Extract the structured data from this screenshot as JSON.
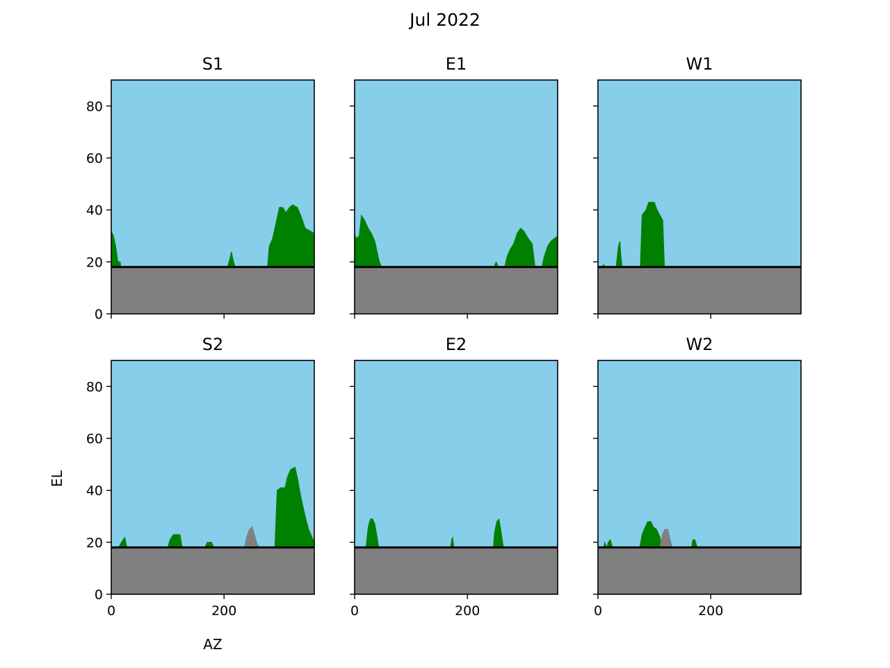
{
  "figure": {
    "title": "Jul 2022"
  },
  "chart_data": {
    "type": "area",
    "xlabel": "AZ",
    "ylabel": "EL",
    "xlim": [
      0,
      360
    ],
    "ylim": [
      0,
      90
    ],
    "xticks": [
      0,
      200
    ],
    "yticks": [
      0,
      20,
      40,
      60,
      80
    ],
    "colors": {
      "sky": "#87CEEB",
      "ground": "#808080",
      "obstruction": "#008000",
      "other": "#808080",
      "horizon": "#000000"
    },
    "panels": [
      {
        "title": "S1",
        "horizon_el": 18,
        "green": [
          [
            [
              0,
              32
            ],
            [
              4,
              30
            ],
            [
              8,
              26
            ],
            [
              12,
              20
            ],
            [
              16,
              20
            ],
            [
              17,
              18
            ]
          ],
          [
            [
              206,
              18
            ],
            [
              210,
              21
            ],
            [
              213,
              24
            ],
            [
              217,
              20
            ],
            [
              220,
              18
            ]
          ],
          [
            [
              277,
              18
            ],
            [
              280,
              26
            ],
            [
              286,
              29
            ],
            [
              290,
              33
            ],
            [
              294,
              37
            ],
            [
              298,
              41
            ],
            [
              304,
              41
            ],
            [
              310,
              39
            ],
            [
              316,
              41
            ],
            [
              322,
              42
            ],
            [
              330,
              41
            ],
            [
              336,
              38
            ],
            [
              344,
              33
            ],
            [
              352,
              32
            ],
            [
              360,
              31
            ]
          ]
        ],
        "grey": []
      },
      {
        "title": "E1",
        "horizon_el": 18,
        "green": [
          [
            [
              0,
              31
            ],
            [
              3,
              29
            ],
            [
              8,
              30
            ],
            [
              12,
              38
            ],
            [
              18,
              36
            ],
            [
              24,
              33
            ],
            [
              30,
              31
            ],
            [
              36,
              28
            ],
            [
              40,
              24
            ],
            [
              44,
              20
            ],
            [
              48,
              18
            ]
          ],
          [
            [
              247,
              18
            ],
            [
              251,
              20
            ],
            [
              255,
              18
            ]
          ],
          [
            [
              266,
              18
            ],
            [
              270,
              22
            ],
            [
              276,
              25
            ],
            [
              282,
              27
            ],
            [
              288,
              31
            ],
            [
              294,
              33
            ],
            [
              300,
              32
            ],
            [
              308,
              29
            ],
            [
              315,
              27
            ],
            [
              320,
              18
            ]
          ],
          [
            [
              332,
              18
            ],
            [
              336,
              22
            ],
            [
              342,
              26
            ],
            [
              348,
              28
            ],
            [
              354,
              29
            ],
            [
              360,
              30
            ]
          ]
        ],
        "grey": []
      },
      {
        "title": "W1",
        "horizon_el": 18,
        "green": [
          [
            [
              7,
              18
            ],
            [
              10,
              19
            ],
            [
              13,
              18
            ]
          ],
          [
            [
              32,
              18
            ],
            [
              34,
              22
            ],
            [
              36,
              26
            ],
            [
              39,
              28
            ],
            [
              41,
              22
            ],
            [
              43,
              18
            ]
          ],
          [
            [
              75,
              18
            ],
            [
              78,
              38
            ],
            [
              85,
              40
            ],
            [
              90,
              43
            ],
            [
              100,
              43
            ],
            [
              105,
              40
            ],
            [
              110,
              38
            ],
            [
              115,
              36
            ],
            [
              118,
              18
            ]
          ]
        ],
        "grey": []
      },
      {
        "title": "S2",
        "horizon_el": 18,
        "green": [
          [
            [
              13,
              18
            ],
            [
              18,
              20
            ],
            [
              24,
              22
            ],
            [
              28,
              18
            ]
          ],
          [
            [
              100,
              18
            ],
            [
              104,
              21
            ],
            [
              110,
              23
            ],
            [
              122,
              23
            ],
            [
              126,
              18
            ]
          ],
          [
            [
              166,
              18
            ],
            [
              170,
              20
            ],
            [
              178,
              20
            ],
            [
              182,
              18
            ]
          ],
          [
            [
              290,
              18
            ],
            [
              294,
              40
            ],
            [
              300,
              41
            ],
            [
              308,
              41
            ],
            [
              312,
              45
            ],
            [
              318,
              48
            ],
            [
              326,
              49
            ],
            [
              330,
              45
            ],
            [
              336,
              38
            ],
            [
              344,
              30
            ],
            [
              350,
              25
            ],
            [
              356,
              22
            ],
            [
              360,
              20
            ]
          ]
        ],
        "grey": [
          [
            [
              236,
              18
            ],
            [
              240,
              22
            ],
            [
              245,
              25
            ],
            [
              250,
              26
            ],
            [
              254,
              23
            ],
            [
              258,
              20
            ],
            [
              262,
              18
            ]
          ]
        ]
      },
      {
        "title": "E2",
        "horizon_el": 18,
        "green": [
          [
            [
              20,
              18
            ],
            [
              24,
              26
            ],
            [
              28,
              29
            ],
            [
              32,
              29
            ],
            [
              36,
              27
            ],
            [
              40,
              22
            ],
            [
              43,
              18
            ]
          ],
          [
            [
              170,
              18
            ],
            [
              172,
              21
            ],
            [
              174,
              22
            ],
            [
              176,
              18
            ]
          ],
          [
            [
              246,
              18
            ],
            [
              248,
              24
            ],
            [
              252,
              28
            ],
            [
              256,
              29
            ],
            [
              260,
              24
            ],
            [
              264,
              18
            ]
          ]
        ],
        "grey": []
      },
      {
        "title": "W2",
        "horizon_el": 18,
        "green": [
          [
            [
              10,
              18
            ],
            [
              12,
              20
            ],
            [
              16,
              18
            ],
            [
              18,
              20
            ],
            [
              22,
              21
            ],
            [
              26,
              18
            ]
          ],
          [
            [
              74,
              18
            ],
            [
              78,
              23
            ],
            [
              82,
              25
            ],
            [
              88,
              28
            ],
            [
              94,
              28
            ],
            [
              98,
              26
            ],
            [
              104,
              25
            ],
            [
              110,
              22
            ],
            [
              113,
              18
            ]
          ],
          [
            [
              166,
              18
            ],
            [
              168,
              21
            ],
            [
              172,
              21
            ],
            [
              176,
              18
            ]
          ]
        ],
        "grey": [
          [
            [
              110,
              18
            ],
            [
              114,
              23
            ],
            [
              118,
              25
            ],
            [
              124,
              25
            ],
            [
              128,
              21
            ],
            [
              132,
              18
            ]
          ]
        ]
      }
    ]
  }
}
